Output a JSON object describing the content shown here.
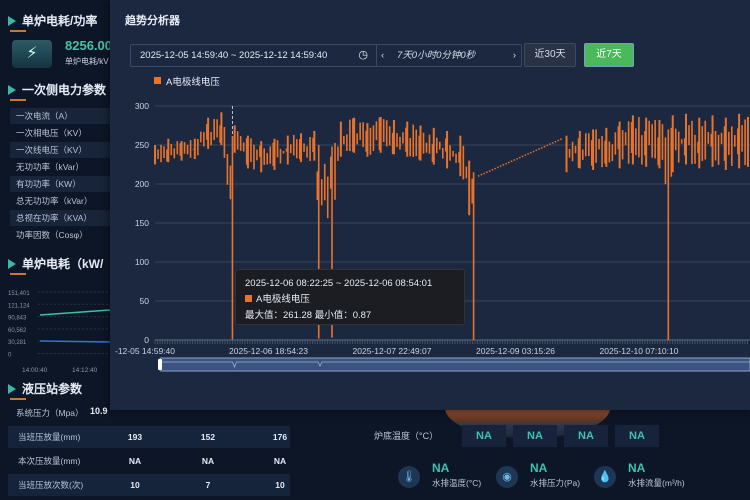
{
  "left": {
    "power_title": "单炉电耗/功率",
    "power_value": "8256.00",
    "power_label": "单炉电耗/kV",
    "primary_title": "一次侧电力参数",
    "primary_params": [
      "一次电流（A）",
      "一次相电压（KV）",
      "一次线电压（KV）",
      "无功功率（kVar）",
      "有功功率（KW）",
      "总无功功率（kVar）",
      "总视在功率（KVA）",
      "功率因数（Cosφ）"
    ],
    "consumption_title": "单炉电耗（kW/",
    "mini_chart": {
      "y_ticks": [
        "151,401",
        "121,124",
        "90,843",
        "60,562",
        "30,281",
        "0"
      ],
      "x_ticks": [
        "14:00:40",
        "14:12:40"
      ],
      "colors": [
        "#3fc1a0",
        "#3b6fd6"
      ]
    },
    "hydraulic_title": "液压站参数",
    "system_pressure_label": "系统压力（Mpa）",
    "system_pressure_value": "10.9",
    "rows": [
      {
        "label": "当班压放量(mm)",
        "values": [
          "193",
          "152",
          "176"
        ]
      },
      {
        "label": "本次压放量(mm)",
        "values": [
          "NA",
          "NA",
          "NA"
        ]
      },
      {
        "label": "当班压放次数(次)",
        "values": [
          "10",
          "7",
          "10"
        ]
      }
    ]
  },
  "furnace": {
    "bottom_temp_label": "炉底温度（°C）",
    "bottom_temps": [
      "NA",
      "NA",
      "NA",
      "NA"
    ],
    "water": [
      {
        "icon": "thermometer-icon",
        "value": "NA",
        "label": "水排温度(°C)"
      },
      {
        "icon": "gauge-icon",
        "value": "NA",
        "label": "水排压力(Pa)"
      },
      {
        "icon": "water-drop-icon",
        "value": "NA",
        "label": "水排流量(m³/h)"
      }
    ]
  },
  "modal": {
    "title": "趋势分析器",
    "range": "2025-12-05 14:59:40 ~ 2025-12-12 14:59:40",
    "duration": "7天0小时0分钟0秒",
    "btn_30": "近30天",
    "btn_7": "近7天",
    "active_color": "#4cb85c"
  },
  "tooltip": {
    "time": "2025-12-06 08:22:25 ~ 2025-12-06 08:54:01",
    "series": "A电极线电压",
    "stats": "最大值：261.28 最小值：0.87"
  },
  "chart_data": {
    "type": "bar",
    "series_name": "A电极线电压",
    "color": "#e8732a",
    "ylim": [
      0,
      300
    ],
    "y_ticks": [
      "300",
      "250",
      "200",
      "150",
      "100",
      "50",
      "0"
    ],
    "x_range": [
      "2025-12-05 14:59:40",
      "2025-12-12 14:59:40"
    ],
    "x_ticks": [
      "-12-05 14:59:40",
      "2025-12-06 18:54:23",
      "2025-12-07 22:49:07",
      "2025-12-09 03:15:26",
      "2025-12-10 07:10:10",
      "2025"
    ],
    "grid": true,
    "legend": "top-left",
    "points": [
      [
        "2025-12-05 15:00",
        225,
        250
      ],
      [
        "2025-12-05 18:00",
        228,
        258
      ],
      [
        "2025-12-05 21:00",
        230,
        255
      ],
      [
        "2025-12-06 00:00",
        232,
        258
      ],
      [
        "2025-12-06 03:00",
        245,
        285
      ],
      [
        "2025-12-06 06:00",
        250,
        292
      ],
      [
        "2025-12-06 08:30",
        0.87,
        261.28
      ],
      [
        "2025-12-06 09:00",
        240,
        275
      ],
      [
        "2025-12-06 12:00",
        220,
        262
      ],
      [
        "2025-12-06 15:00",
        215,
        255
      ],
      [
        "2025-12-06 18:00",
        218,
        258
      ],
      [
        "2025-12-06 21:00",
        225,
        262
      ],
      [
        "2025-12-07 00:00",
        228,
        265
      ],
      [
        "2025-12-07 03:00",
        230,
        268
      ],
      [
        "2025-12-07 04:00",
        2,
        250
      ],
      [
        "2025-12-07 07:00",
        3,
        248
      ],
      [
        "2025-12-07 09:00",
        235,
        280
      ],
      [
        "2025-12-07 12:00",
        240,
        285
      ],
      [
        "2025-12-07 15:00",
        235,
        278
      ],
      [
        "2025-12-07 18:00",
        240,
        286
      ],
      [
        "2025-12-07 21:00",
        238,
        282
      ],
      [
        "2025-12-08 00:00",
        235,
        280
      ],
      [
        "2025-12-08 03:00",
        230,
        275
      ],
      [
        "2025-12-08 06:00",
        225,
        272
      ],
      [
        "2025-12-08 09:00",
        220,
        268
      ],
      [
        "2025-12-08 12:00",
        210,
        262
      ],
      [
        "2025-12-08 14:00",
        160,
        230
      ],
      [
        "2025-12-08 15:00",
        0,
        215
      ],
      [
        "2025-12-09 12:00",
        215,
        262
      ],
      [
        "2025-12-09 15:00",
        220,
        268
      ],
      [
        "2025-12-09 18:00",
        218,
        270
      ],
      [
        "2025-12-09 21:00",
        222,
        272
      ],
      [
        "2025-12-10 00:00",
        220,
        280
      ],
      [
        "2025-12-10 03:00",
        225,
        288
      ],
      [
        "2025-12-10 06:00",
        222,
        285
      ],
      [
        "2025-12-10 09:00",
        220,
        282
      ],
      [
        "2025-12-10 11:00",
        0,
        270
      ],
      [
        "2025-12-10 12:00",
        215,
        288
      ],
      [
        "2025-12-10 15:00",
        225,
        290
      ],
      [
        "2025-12-10 18:00",
        220,
        285
      ],
      [
        "2025-12-10 21:00",
        222,
        288
      ],
      [
        "2025-12-11 00:00",
        218,
        285
      ],
      [
        "2025-12-11 03:00",
        220,
        290
      ],
      [
        "2025-12-11 05:00",
        222,
        286
      ]
    ],
    "gap_line": [
      [
        "2025-12-08 16:00",
        210
      ],
      [
        "2025-12-09 11:00",
        258
      ]
    ],
    "pointer_time": "2025-12-06 08:30"
  }
}
